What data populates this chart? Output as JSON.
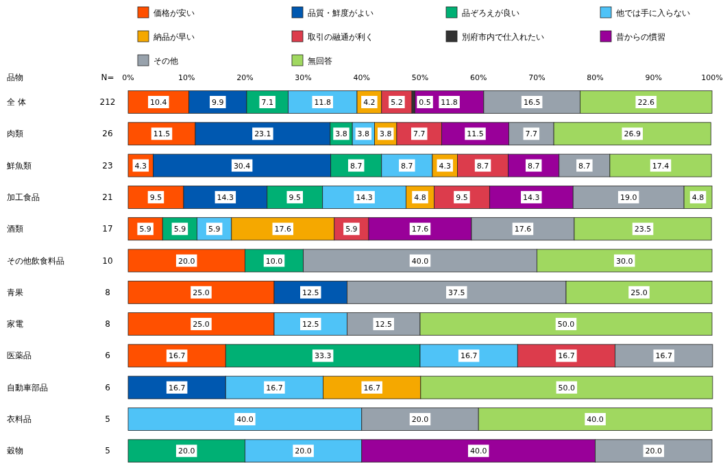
{
  "chart_data": {
    "type": "bar",
    "orientation": "horizontal",
    "stacked": true,
    "categories": [
      "全 体",
      "肉類",
      "鮮魚類",
      "加工食品",
      "酒類",
      "その他飲食料品",
      "青果",
      "家電",
      "医薬品",
      "自動車部品",
      "衣料品",
      "穀物"
    ],
    "annotations": [
      "品物",
      "N=",
      "212",
      "26",
      "23",
      "21",
      "17",
      "10",
      "8",
      "8",
      "6",
      "6",
      "5",
      "5"
    ],
    "xlim": [
      0,
      100
    ],
    "xticks": [
      {
        "value": 0,
        "label": "0%"
      },
      {
        "value": 10,
        "label": "10%"
      },
      {
        "value": 20,
        "label": "20%"
      },
      {
        "value": 30,
        "label": "30%"
      },
      {
        "value": 40,
        "label": "40%"
      },
      {
        "value": 50,
        "label": "50%"
      },
      {
        "value": 60,
        "label": "60%"
      },
      {
        "value": 70,
        "label": "70%"
      },
      {
        "value": 80,
        "label": "80%"
      },
      {
        "value": 90,
        "label": "90%"
      },
      {
        "value": 100,
        "label": "100%"
      }
    ],
    "legend": "top",
    "grid": false,
    "series": [
      {
        "name": "価格が安い",
        "color": "#ff5000",
        "values": [
          10.4,
          11.5,
          4.3,
          9.5,
          5.9,
          20.0,
          25.0,
          25.0,
          16.7,
          null,
          null,
          null
        ],
        "value_labels": [
          "10.4",
          "11.5",
          "4.3",
          "9.5",
          "5.9",
          "20.0",
          "25.0",
          "25.0",
          "16.7",
          null,
          null,
          null
        ]
      },
      {
        "name": "品質・鮮度がよい",
        "color": "#0058b0",
        "values": [
          9.9,
          23.1,
          30.4,
          14.3,
          null,
          null,
          12.5,
          null,
          null,
          16.7,
          null,
          null
        ],
        "value_labels": [
          "9.9",
          "23.1",
          "30.4",
          "14.3",
          null,
          null,
          "12.5",
          null,
          null,
          "16.7",
          null,
          null
        ]
      },
      {
        "name": "品ぞろえが良い",
        "color": "#00b074",
        "values": [
          7.1,
          3.8,
          8.7,
          9.5,
          5.9,
          10.0,
          null,
          null,
          33.3,
          null,
          null,
          20.0
        ],
        "value_labels": [
          "7.1",
          "3.8",
          "8.7",
          "9.5",
          "5.9",
          "10.0",
          null,
          null,
          "33.3",
          null,
          null,
          "20.0"
        ]
      },
      {
        "name": "他では手に入らない",
        "color": "#4fc3f7",
        "values": [
          11.8,
          3.8,
          8.7,
          14.3,
          5.9,
          null,
          null,
          12.5,
          16.7,
          16.7,
          40.0,
          20.0
        ],
        "value_labels": [
          "11.8",
          "3.8",
          "8.7",
          "14.3",
          "5.9",
          null,
          null,
          "12.5",
          "16.7",
          "16.7",
          "40.0",
          "20.0"
        ]
      },
      {
        "name": "納品が早い",
        "color": "#f5a800",
        "values": [
          4.2,
          3.8,
          4.3,
          4.8,
          17.6,
          null,
          null,
          null,
          null,
          16.7,
          null,
          null
        ],
        "value_labels": [
          "4.2",
          "3.8",
          "4.3",
          "4.8",
          "17.6",
          null,
          null,
          null,
          null,
          "16.7",
          null,
          null
        ]
      },
      {
        "name": "取引の融通が利く",
        "color": "#dc3c4c",
        "values": [
          5.2,
          7.7,
          8.7,
          9.5,
          5.9,
          null,
          null,
          null,
          16.7,
          null,
          null,
          null
        ],
        "value_labels": [
          "5.2",
          "7.7",
          "8.7",
          "9.5",
          "5.9",
          null,
          null,
          null,
          "16.7",
          null,
          null,
          null
        ]
      },
      {
        "name": "別府市内で仕入れたい",
        "color": "#333333",
        "values": [
          0.5,
          null,
          null,
          null,
          null,
          null,
          null,
          null,
          null,
          null,
          null,
          null
        ],
        "value_labels": [
          "0.5",
          null,
          null,
          null,
          null,
          null,
          null,
          null,
          null,
          null,
          null,
          null
        ]
      },
      {
        "name": "昔からの慣習",
        "color": "#990099",
        "values": [
          11.8,
          11.5,
          8.7,
          14.3,
          17.6,
          null,
          null,
          null,
          null,
          null,
          null,
          40.0
        ],
        "value_labels": [
          "11.8",
          "11.5",
          "8.7",
          "14.3",
          "17.6",
          null,
          null,
          null,
          null,
          null,
          null,
          "40.0"
        ]
      },
      {
        "name": "その他",
        "color": "#98a2ac",
        "values": [
          16.5,
          7.7,
          8.7,
          19.0,
          17.6,
          40.0,
          37.5,
          12.5,
          16.7,
          null,
          20.0,
          20.0
        ],
        "value_labels": [
          "16.5",
          "7.7",
          "8.7",
          "19.0",
          "17.6",
          "40.0",
          "37.5",
          "12.5",
          "16.7",
          null,
          "20.0",
          "20.0"
        ]
      },
      {
        "name": "無回答",
        "color": "#a0d860",
        "values": [
          22.6,
          26.9,
          17.4,
          4.8,
          23.5,
          30.0,
          25.0,
          50.0,
          null,
          50.0,
          40.0,
          null
        ],
        "value_labels": [
          "22.6",
          "26.9",
          "17.4",
          "4.8",
          "23.5",
          "30.0",
          "25.0",
          "50.0",
          null,
          "50.0",
          "40.0",
          null
        ]
      }
    ]
  }
}
